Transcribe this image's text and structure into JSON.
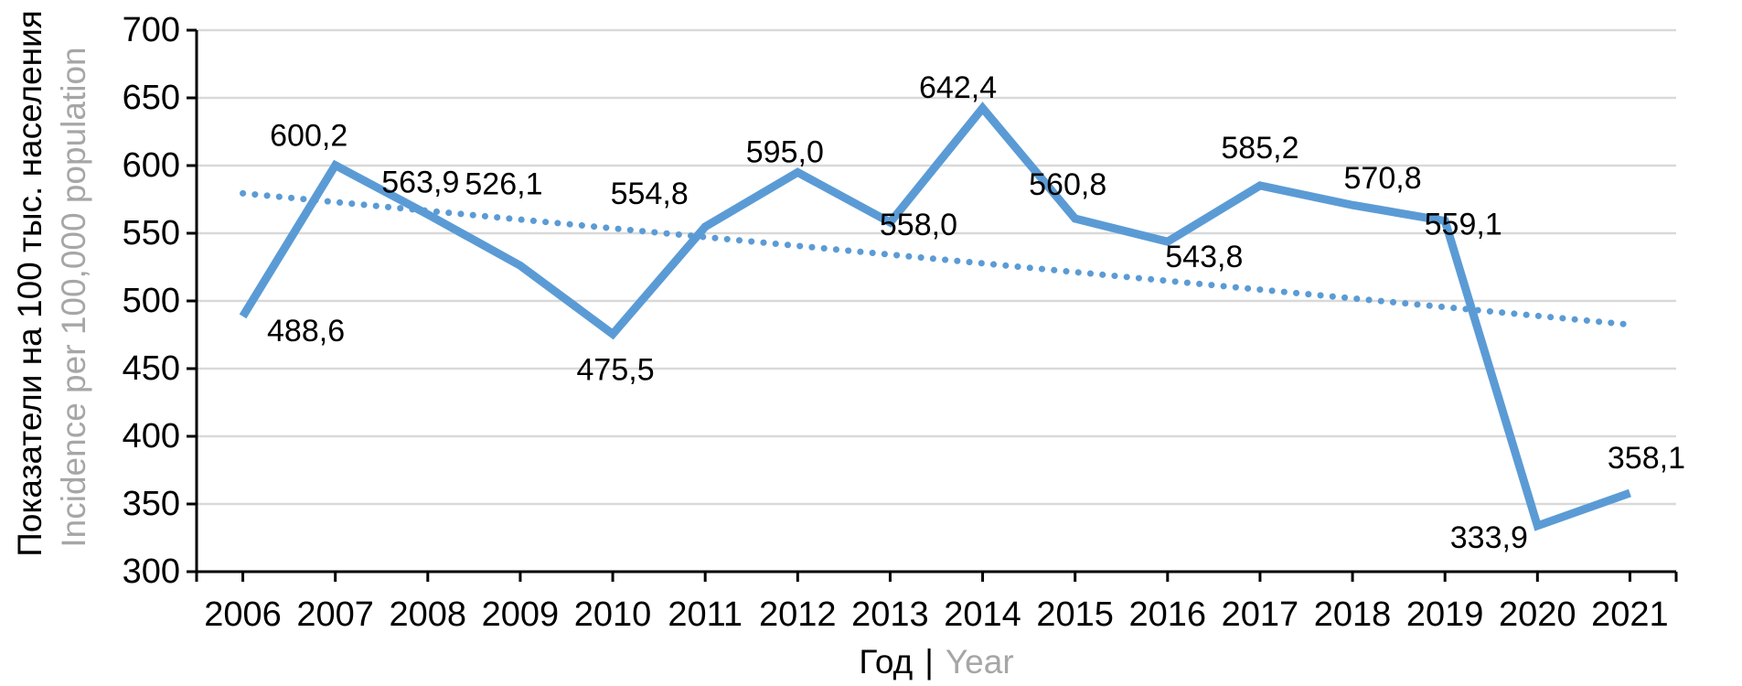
{
  "chart_data": {
    "type": "line",
    "title": "",
    "xlabel_ru": "Год",
    "xlabel_sep": "|",
    "xlabel_en": "Year",
    "ylabel_ru": "Показатели на 100 тыс. населения",
    "ylabel_en": "Incidence per 100,000 population",
    "ylim": [
      300,
      700
    ],
    "y_ticks": [
      300,
      350,
      400,
      450,
      500,
      550,
      600,
      650,
      700
    ],
    "grid": true,
    "legend": "none",
    "categories": [
      2006,
      2007,
      2008,
      2009,
      2010,
      2011,
      2012,
      2013,
      2014,
      2015,
      2016,
      2017,
      2018,
      2019,
      2020,
      2021
    ],
    "series": [
      {
        "name": "incidence-per-100000",
        "points": [
          {
            "year": 2006,
            "value": 488.6,
            "label": "488,6",
            "dx": 69,
            "dy": 16
          },
          {
            "year": 2007,
            "value": 600.2,
            "label": "600,2",
            "dx": -29,
            "dy": -32
          },
          {
            "year": 2008,
            "value": 563.9,
            "label": "563,9",
            "dx": -8,
            "dy": -35
          },
          {
            "year": 2009,
            "value": 526.1,
            "label": "526,1",
            "dx": -18,
            "dy": -89
          },
          {
            "year": 2010,
            "value": 475.5,
            "label": "475,5",
            "dx": 3,
            "dy": 39
          },
          {
            "year": 2011,
            "value": 554.8,
            "label": "554,8",
            "dx": -61,
            "dy": -36
          },
          {
            "year": 2012,
            "value": 595.0,
            "label": "595,0",
            "dx": -14,
            "dy": -22
          },
          {
            "year": 2013,
            "value": 558.0,
            "label": "558,0",
            "dx": 31,
            "dy": 3
          },
          {
            "year": 2014,
            "value": 642.4,
            "label": "642,4",
            "dx": -27,
            "dy": -22
          },
          {
            "year": 2015,
            "value": 560.8,
            "label": "560,8",
            "dx": -8,
            "dy": -37
          },
          {
            "year": 2016,
            "value": 543.8,
            "label": "543,8",
            "dx": 40,
            "dy": 17
          },
          {
            "year": 2017,
            "value": 585.2,
            "label": "585,2",
            "dx": 0,
            "dy": -41
          },
          {
            "year": 2018,
            "value": 570.8,
            "label": "570,8",
            "dx": 33,
            "dy": -29
          },
          {
            "year": 2019,
            "value": 559.1,
            "label": "559,1",
            "dx": 20,
            "dy": 4
          },
          {
            "year": 2020,
            "value": 333.9,
            "label": "333,9",
            "dx": -53,
            "dy": 13
          },
          {
            "year": 2021,
            "value": 358.1,
            "label": "358,1",
            "dx": 18,
            "dy": -38
          }
        ]
      }
    ],
    "trendline": {
      "type": "linear",
      "style": "dotted",
      "start_value": 579.5,
      "end_value": 482.5
    },
    "colors": {
      "line": "#5B9BD5",
      "trend": "#5B9BD5",
      "grid": "#D9D9D9",
      "axis": "#000000",
      "text": "#000000",
      "secondary_text": "#A6A6A6"
    }
  }
}
